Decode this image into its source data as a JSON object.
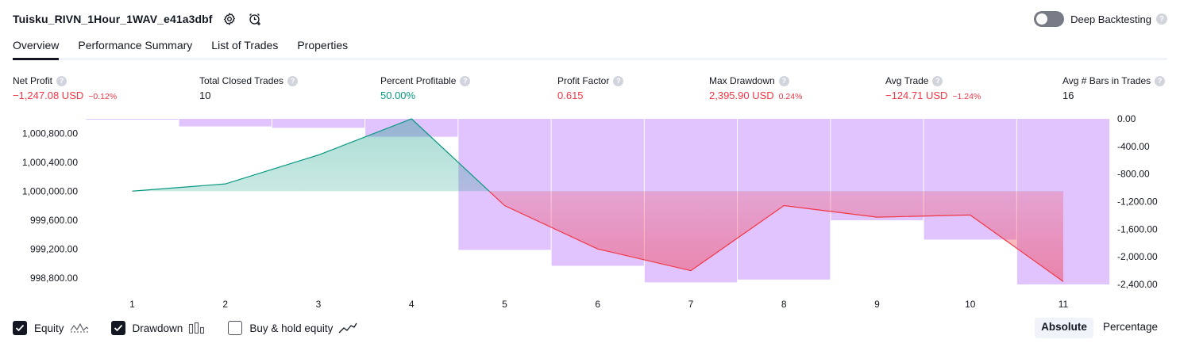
{
  "header": {
    "title": "Tuisku_RIVN_1Hour_1WAV_e41a3dbf",
    "icons": [
      "settings-icon",
      "add-alert-icon"
    ],
    "deep_backtesting_label": "Deep Backtesting",
    "deep_backtesting_on": false,
    "help_glyph": "?"
  },
  "tabs": [
    {
      "label": "Overview",
      "active": true
    },
    {
      "label": "Performance Summary",
      "active": false
    },
    {
      "label": "List of Trades",
      "active": false
    },
    {
      "label": "Properties",
      "active": false
    }
  ],
  "metrics": [
    {
      "label": "Net Profit",
      "value": "−1,247.08 USD",
      "sub": "−0.12%",
      "tone": "neg"
    },
    {
      "label": "Total Closed Trades",
      "value": "10",
      "sub": "",
      "tone": "neutral"
    },
    {
      "label": "Percent Profitable",
      "value": "50.00%",
      "sub": "",
      "tone": "pos"
    },
    {
      "label": "Profit Factor",
      "value": "0.615",
      "sub": "",
      "tone": "neg"
    },
    {
      "label": "Max Drawdown",
      "value": "2,395.90 USD",
      "sub": "0.24%",
      "tone": "neg"
    },
    {
      "label": "Avg Trade",
      "value": "−124.71 USD",
      "sub": "−1.24%",
      "tone": "neg"
    },
    {
      "label": "Avg # Bars in Trades",
      "value": "16",
      "sub": "",
      "tone": "neutral"
    }
  ],
  "chart_data": {
    "type": "line",
    "x": [
      1,
      2,
      3,
      4,
      5,
      6,
      7,
      8,
      9,
      10,
      11
    ],
    "series": [
      {
        "name": "Equity",
        "values": [
          1000000.0,
          1000100.0,
          1000500.0,
          1001000.0,
          999800.0,
          999200.0,
          998900.0,
          999800.0,
          999640.0,
          999670.0,
          998750.0
        ],
        "baseline": 1000000.0,
        "color_up": "#089981",
        "color_down": "#f23645"
      },
      {
        "name": "Drawdown",
        "type": "bar",
        "values": [
          0.0,
          -110.0,
          -130.0,
          -260.0,
          -1900.0,
          -2130.0,
          -2370.0,
          -2330.0,
          -1470.0,
          -1750.0,
          -2400.0
        ],
        "color": "#e1c4fd"
      }
    ],
    "y_left": {
      "ticks": [
        "1,000,800.00",
        "1,000,400.00",
        "1,000,000.00",
        "999,600.00",
        "999,200.00",
        "998,800.00"
      ],
      "tick_values": [
        1000800,
        1000400,
        1000000,
        999600,
        999200,
        998800
      ],
      "range": [
        998710,
        1001000
      ]
    },
    "y_right": {
      "ticks": [
        "0.00",
        "-400.00",
        "-800.00",
        "-1,200.00",
        "-1,600.00",
        "-2,000.00",
        "-2,400.00"
      ],
      "tick_values": [
        0,
        -400,
        -800,
        -1200,
        -1600,
        -2000,
        -2400
      ],
      "range": [
        -2400,
        0
      ]
    },
    "x_ticks": [
      "1",
      "2",
      "3",
      "4",
      "5",
      "6",
      "7",
      "8",
      "9",
      "10",
      "11"
    ],
    "grid": false
  },
  "legend": {
    "items": [
      {
        "label": "Equity",
        "checked": true,
        "icon": "equity-line-icon"
      },
      {
        "label": "Drawdown",
        "checked": true,
        "icon": "drawdown-bars-icon"
      },
      {
        "label": "Buy & hold equity",
        "checked": false,
        "icon": "buy-hold-line-icon"
      }
    ]
  },
  "mode": {
    "absolute": "Absolute",
    "percentage": "Percentage",
    "selected": "Absolute"
  }
}
